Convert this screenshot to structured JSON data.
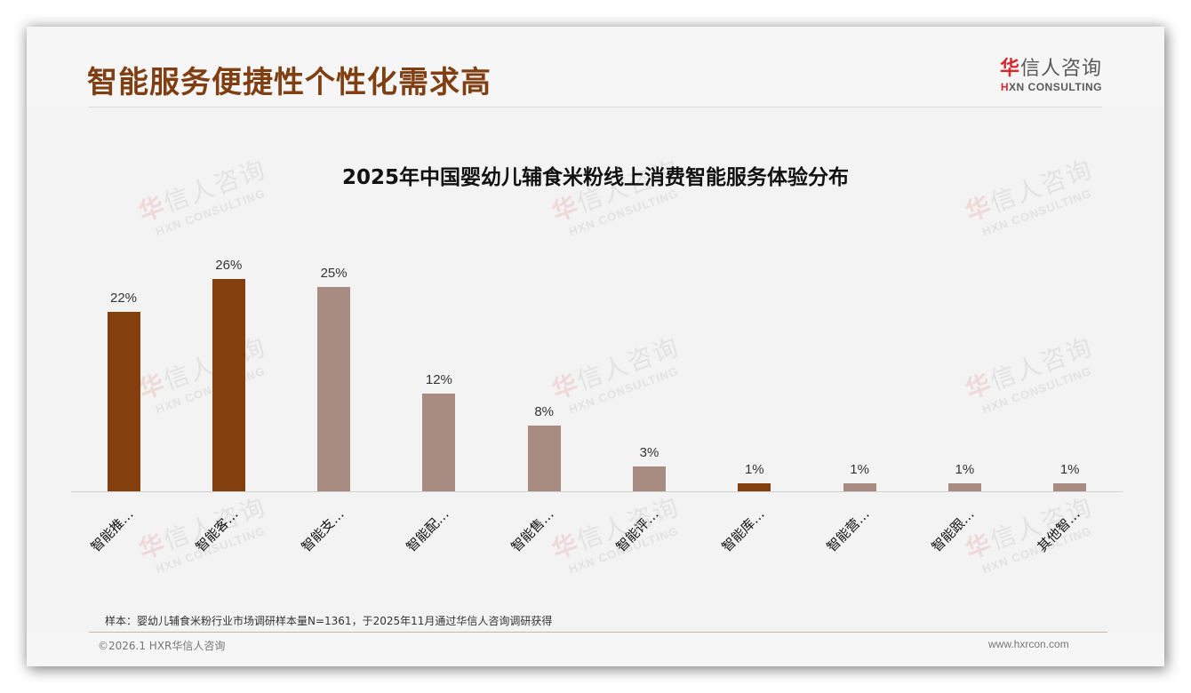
{
  "page": {
    "title": "智能服务便捷性个性化需求高",
    "title_color": "#7f3f12"
  },
  "logo": {
    "cn_first": "华",
    "cn_rest": "信人咨询",
    "en_first": "H",
    "en_rest": "XN CONSULTING",
    "accent_color": "#d7282f"
  },
  "watermark": {
    "cn_first": "华",
    "cn_rest": "信人咨询",
    "en": "HXN CONSULTING"
  },
  "footer": {
    "sample_note": "样本：婴幼儿辅食米粉行业市场调研样本量N=1361，于2025年11月通过华信人咨询调研获得",
    "copyright": "©2026.1 HXR华信人咨询",
    "website": "www.hxrcon.com"
  },
  "chart_data": {
    "type": "bar",
    "title": "2025年中国婴幼儿辅食米粉线上消费智能服务体验分布",
    "xlabel": "",
    "ylabel": "",
    "ylim": [
      0,
      30
    ],
    "grid": false,
    "legend": "none",
    "categories": [
      "智能推…",
      "智能客…",
      "智能支…",
      "智能配…",
      "智能售…",
      "智能评…",
      "智能库…",
      "智能营…",
      "智能跟…",
      "其他智…"
    ],
    "values": [
      22,
      26,
      25,
      12,
      8,
      3,
      1,
      1,
      1,
      1
    ],
    "value_labels": [
      "22%",
      "26%",
      "25%",
      "12%",
      "8%",
      "3%",
      "1%",
      "1%",
      "1%",
      "1%"
    ],
    "colors": [
      "#843f0f",
      "#843f0f",
      "#a88c82",
      "#a88c82",
      "#a88c82",
      "#a88c82",
      "#843f0f",
      "#a88c82",
      "#a88c82",
      "#a88c82"
    ],
    "highlight_color": "#843f0f",
    "base_color": "#a88c82"
  }
}
